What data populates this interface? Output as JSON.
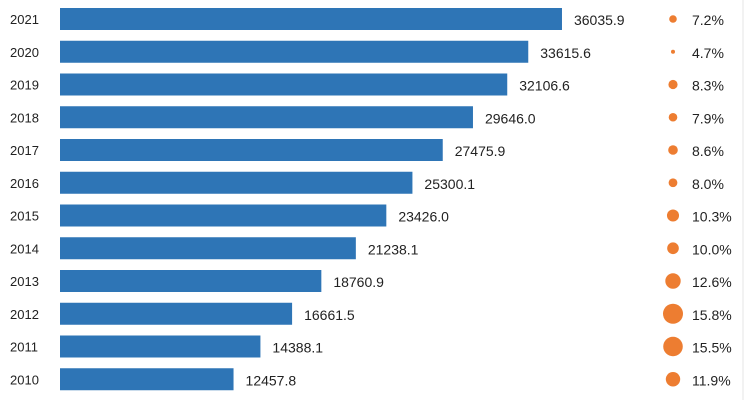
{
  "chart_data": {
    "type": "bar",
    "orientation": "horizontal",
    "categories": [
      "2021",
      "2020",
      "2019",
      "2018",
      "2017",
      "2016",
      "2015",
      "2014",
      "2013",
      "2012",
      "2011",
      "2010"
    ],
    "series": [
      {
        "values": [
          36035.9,
          33615.6,
          32106.6,
          29646.0,
          27475.9,
          25300.1,
          23426.0,
          21238.1,
          18760.9,
          16661.5,
          14388.1,
          12457.8
        ],
        "labels": [
          "36035.9",
          "33615.6",
          "32106.6",
          "29646.0",
          "27475.9",
          "25300.1",
          "23426.0",
          "21238.1",
          "18760.9",
          "16661.5",
          "14388.1",
          "12457.8"
        ]
      },
      {
        "type": "bubble",
        "values": [
          7.2,
          4.7,
          8.3,
          7.9,
          8.6,
          8.0,
          10.3,
          10.0,
          12.6,
          15.8,
          15.5,
          11.9
        ],
        "labels": [
          "7.2%",
          "4.7%",
          "8.3%",
          "7.9%",
          "8.6%",
          "8.0%",
          "10.3%",
          "10.0%",
          "12.6%",
          "15.8%",
          "15.5%",
          "11.9%"
        ]
      }
    ],
    "bar_color": "#2e75b6",
    "bubble_color": "#ed7d31"
  }
}
